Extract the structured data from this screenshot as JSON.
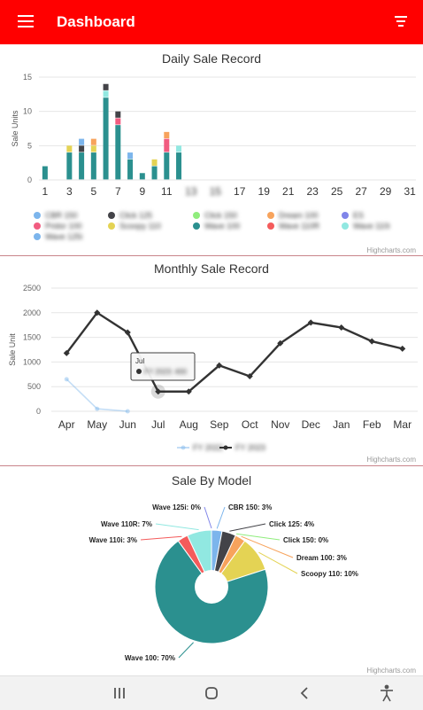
{
  "appbar": {
    "title": "Dashboard",
    "menu_icon": "menu-icon",
    "filter_icon": "filter-icon",
    "color": "#ff0000"
  },
  "credits": "Highcharts.com",
  "daily": {
    "title": "Daily Sale Record",
    "ylabel": "Sale Units",
    "yticks": [
      "0",
      "5",
      "10",
      "15"
    ],
    "xticks": [
      "1",
      "3",
      "5",
      "7",
      "9",
      "11",
      "13",
      "15",
      "17",
      "19",
      "21",
      "23",
      "25",
      "27",
      "29",
      "31"
    ],
    "legend": [
      {
        "name": "CBR 150",
        "color": "#7cb5ec"
      },
      {
        "name": "Click 125",
        "color": "#434348"
      },
      {
        "name": "Click 150",
        "color": "#90ed7d"
      },
      {
        "name": "Dream 100",
        "color": "#f7a35c"
      },
      {
        "name": "ES",
        "color": "#8085e9"
      },
      {
        "name": "Pridor 100",
        "color": "#f15c80"
      },
      {
        "name": "Scoopy 110",
        "color": "#e4d354"
      },
      {
        "name": "Wave 100",
        "color": "#2b908f"
      },
      {
        "name": "Wave 110R",
        "color": "#f45b5b"
      },
      {
        "name": "Wave 110i",
        "color": "#91e8e1"
      },
      {
        "name": "Wave 125i",
        "color": "#7cb5ec"
      }
    ]
  },
  "monthly": {
    "title": "Monthly Sale Record",
    "ylabel": "Sale Unit",
    "yticks": [
      "0",
      "500",
      "1000",
      "1500",
      "2000",
      "2500"
    ],
    "months": [
      "Apr",
      "May",
      "Jun",
      "Jul",
      "Aug",
      "Sep",
      "Oct",
      "Nov",
      "Dec",
      "Jan",
      "Feb",
      "Mar"
    ],
    "tooltip": {
      "header": "Jul",
      "value": "FY 2023: 400"
    },
    "legend": [
      "FY 2022",
      "FY 2023"
    ]
  },
  "model": {
    "title": "Sale By Model",
    "labels": [
      {
        "text": "CBR 150: 3%"
      },
      {
        "text": "Click 125: 4%"
      },
      {
        "text": "Click 150: 0%"
      },
      {
        "text": "Dream 100: 3%"
      },
      {
        "text": "Scoopy 110: 10%"
      },
      {
        "text": "Wave 100: 70%"
      },
      {
        "text": "Wave 110i: 3%"
      },
      {
        "text": "Wave 110R: 7%"
      },
      {
        "text": "Wave 125i: 0%"
      }
    ]
  },
  "chart_data": [
    {
      "type": "bar",
      "title": "Daily Sale Record",
      "ylabel": "Sale Units",
      "xlabel": "",
      "ylim": [
        0,
        15
      ],
      "categories": [
        1,
        2,
        3,
        4,
        5,
        6,
        7,
        8,
        9,
        10,
        11,
        12,
        13,
        14,
        15,
        16,
        17,
        18,
        19,
        20,
        21,
        22,
        23,
        24,
        25,
        26,
        27,
        28,
        29,
        30,
        31
      ],
      "stacked": true,
      "series": [
        {
          "name": "Wave 100",
          "color": "#2b908f",
          "values": [
            2,
            0,
            4,
            4,
            4,
            12,
            8,
            3,
            1,
            2,
            4,
            4,
            0,
            0,
            0,
            0,
            0,
            0,
            0,
            0,
            0,
            0,
            0,
            0,
            0,
            0,
            0,
            0,
            0,
            0,
            0
          ]
        },
        {
          "name": "Wave 110i",
          "color": "#91e8e1",
          "values": [
            0,
            0,
            0,
            0,
            0,
            1,
            0,
            0,
            0,
            0,
            0,
            1,
            0,
            0,
            0,
            0,
            0,
            0,
            0,
            0,
            0,
            0,
            0,
            0,
            0,
            0,
            0,
            0,
            0,
            0,
            0
          ]
        },
        {
          "name": "Pridor 100",
          "color": "#f15c80",
          "values": [
            0,
            0,
            0,
            0,
            0,
            0,
            1,
            0,
            0,
            0,
            2,
            0,
            0,
            0,
            0,
            0,
            0,
            0,
            0,
            0,
            0,
            0,
            0,
            0,
            0,
            0,
            0,
            0,
            0,
            0,
            0
          ]
        },
        {
          "name": "Scoopy 110",
          "color": "#e4d354",
          "values": [
            0,
            0,
            1,
            0,
            1,
            0,
            0,
            0,
            0,
            1,
            0,
            0,
            0,
            0,
            0,
            0,
            0,
            0,
            0,
            0,
            0,
            0,
            0,
            0,
            0,
            0,
            0,
            0,
            0,
            0,
            0
          ]
        },
        {
          "name": "Click 125",
          "color": "#434348",
          "values": [
            0,
            0,
            0,
            1,
            0,
            1,
            1,
            0,
            0,
            0,
            0,
            0,
            0,
            0,
            0,
            0,
            0,
            0,
            0,
            0,
            0,
            0,
            0,
            0,
            0,
            0,
            0,
            0,
            0,
            0,
            0
          ]
        },
        {
          "name": "CBR 150",
          "color": "#7cb5ec",
          "values": [
            0,
            0,
            0,
            1,
            0,
            0,
            0,
            1,
            0,
            0,
            0,
            0,
            0,
            0,
            0,
            0,
            0,
            0,
            0,
            0,
            0,
            0,
            0,
            0,
            0,
            0,
            0,
            0,
            0,
            0,
            0
          ]
        },
        {
          "name": "Dream 100",
          "color": "#f7a35c",
          "values": [
            0,
            0,
            0,
            0,
            1,
            0,
            0,
            0,
            0,
            0,
            1,
            0,
            0,
            0,
            0,
            0,
            0,
            0,
            0,
            0,
            0,
            0,
            0,
            0,
            0,
            0,
            0,
            0,
            0,
            0,
            0
          ]
        }
      ]
    },
    {
      "type": "line",
      "title": "Monthly Sale Record",
      "ylabel": "Sale Unit",
      "xlabel": "",
      "ylim": [
        0,
        2500
      ],
      "categories": [
        "Apr",
        "May",
        "Jun",
        "Jul",
        "Aug",
        "Sep",
        "Oct",
        "Nov",
        "Dec",
        "Jan",
        "Feb",
        "Mar"
      ],
      "series": [
        {
          "name": "FY 2022",
          "color": "#7cb5ec",
          "values": [
            650,
            50,
            0,
            null,
            null,
            null,
            null,
            null,
            null,
            null,
            null,
            null
          ]
        },
        {
          "name": "FY 2023",
          "color": "#333333",
          "values": [
            1180,
            2000,
            1600,
            400,
            400,
            930,
            710,
            1380,
            1800,
            1700,
            1420,
            1270
          ]
        }
      ]
    },
    {
      "type": "pie",
      "title": "Sale By Model",
      "slices": [
        {
          "name": "CBR 150",
          "value": 3,
          "color": "#7cb5ec"
        },
        {
          "name": "Click 125",
          "value": 4,
          "color": "#434348"
        },
        {
          "name": "Click 150",
          "value": 0,
          "color": "#90ed7d"
        },
        {
          "name": "Dream 100",
          "value": 3,
          "color": "#f7a35c"
        },
        {
          "name": "Scoopy 110",
          "value": 10,
          "color": "#e4d354"
        },
        {
          "name": "Wave 100",
          "value": 70,
          "color": "#2b908f"
        },
        {
          "name": "Wave 110i",
          "value": 3,
          "color": "#f45b5b"
        },
        {
          "name": "Wave 110R",
          "value": 7,
          "color": "#91e8e1"
        },
        {
          "name": "Wave 125i",
          "value": 0,
          "color": "#8085e9"
        }
      ]
    }
  ],
  "navbar": {
    "recent_icon": "recent-apps-icon",
    "home_icon": "home-icon",
    "back_icon": "back-icon",
    "accessibility_icon": "accessibility-icon"
  }
}
